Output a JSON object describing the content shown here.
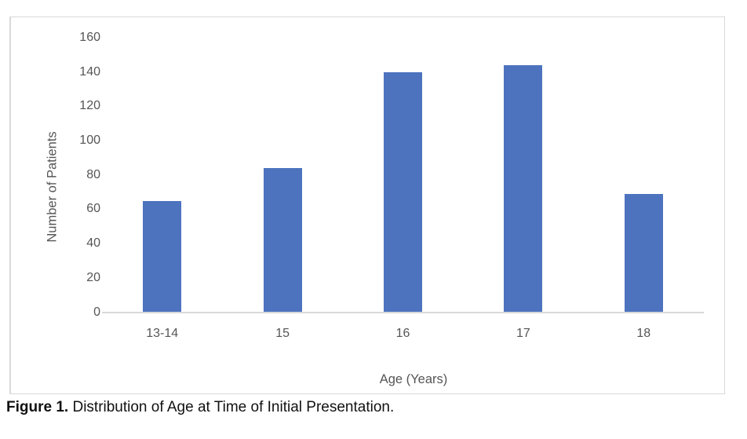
{
  "chart_data": {
    "type": "bar",
    "categories": [
      "13-14",
      "15",
      "16",
      "17",
      "18"
    ],
    "values": [
      65,
      84,
      140,
      144,
      69
    ],
    "title": "",
    "xlabel": "Age (Years)",
    "ylabel": "Number of Patients",
    "ylim": [
      0,
      160
    ],
    "ytick_step": 20,
    "grid": false,
    "legend": false,
    "bar_color": "#4d73bf",
    "axis_line_color": "#d9d9d9",
    "frame_color": "#d9d9d9",
    "tick_text_color": "#555555"
  },
  "caption": {
    "label": "Figure 1.",
    "text": " Distribution of Age at Time of Initial Presentation."
  }
}
